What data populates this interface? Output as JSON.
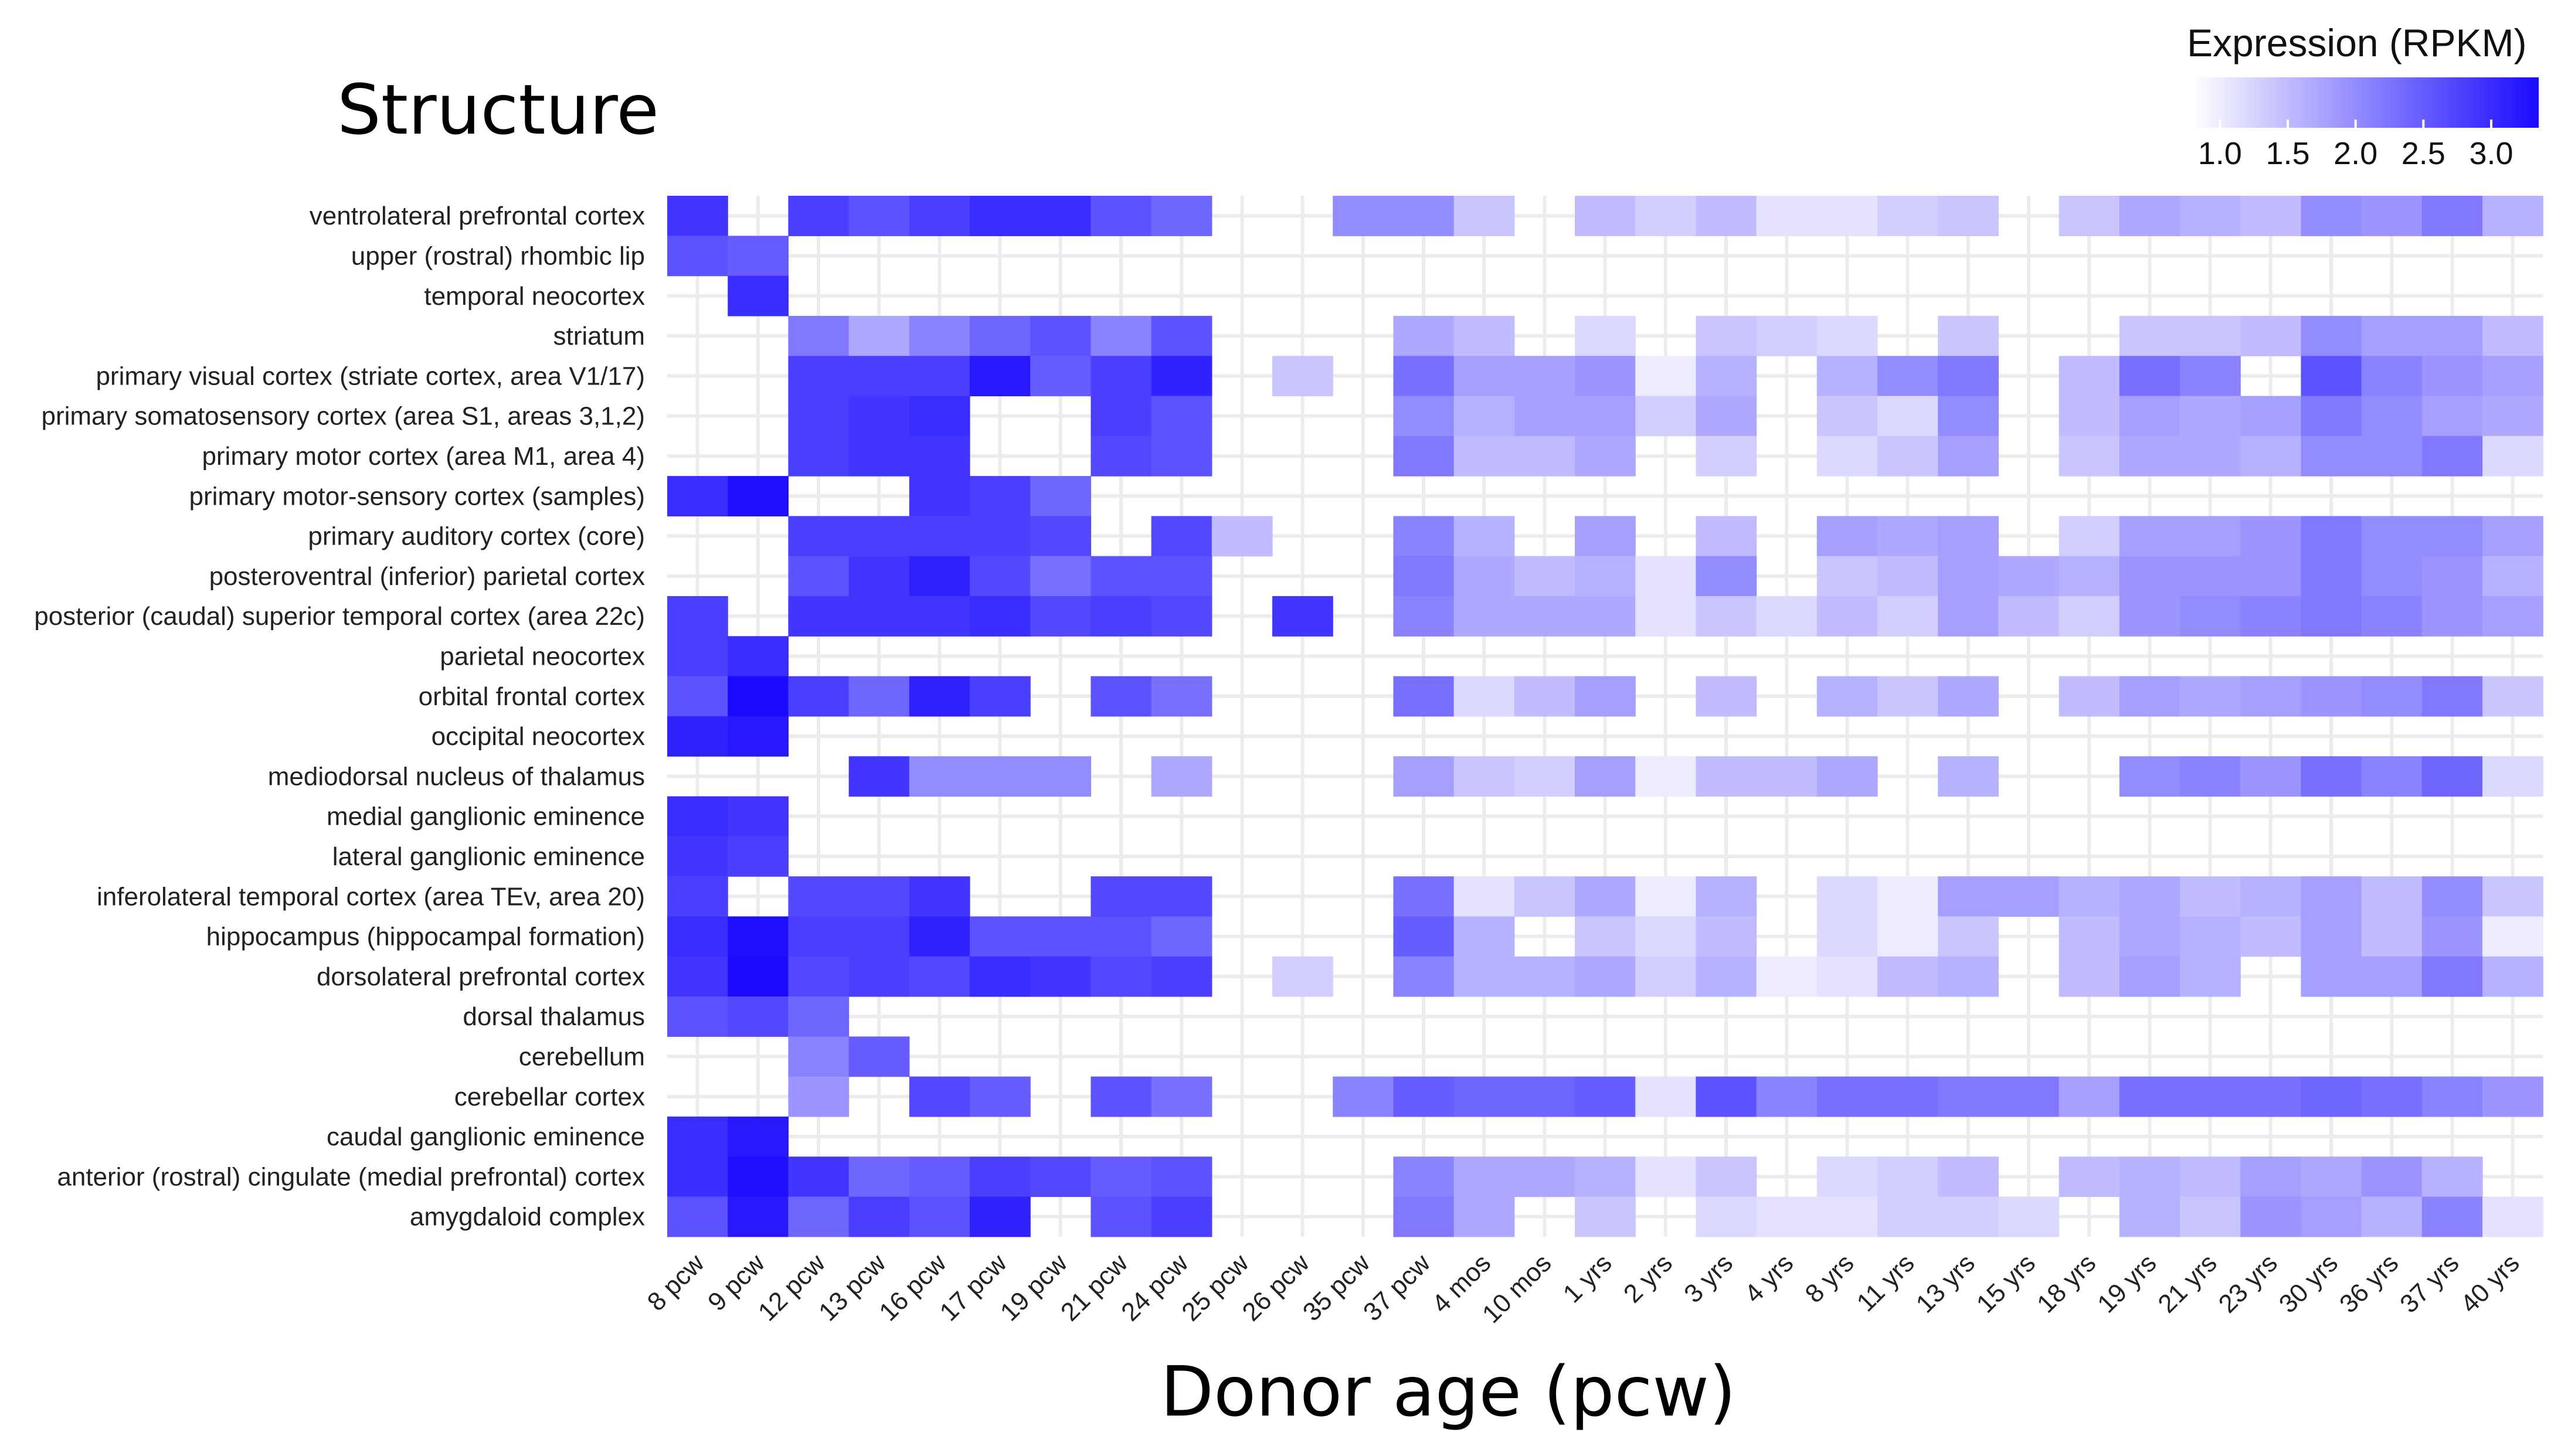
{
  "chart_data": {
    "type": "heatmap",
    "title": "Structure",
    "xlabel": "Donor age (pcw)",
    "x": [
      "8 pcw",
      "9 pcw",
      "12 pcw",
      "13 pcw",
      "16 pcw",
      "17 pcw",
      "19 pcw",
      "21 pcw",
      "24 pcw",
      "25 pcw",
      "26 pcw",
      "35 pcw",
      "37 pcw",
      "4 mos",
      "10 mos",
      "1 yrs",
      "2 yrs",
      "3 yrs",
      "4 yrs",
      "8 yrs",
      "11 yrs",
      "13 yrs",
      "15 yrs",
      "18 yrs",
      "19 yrs",
      "21 yrs",
      "23 yrs",
      "30 yrs",
      "36 yrs",
      "37 yrs",
      "40 yrs"
    ],
    "y": [
      "ventrolateral prefrontal cortex",
      "upper (rostral) rhombic lip",
      "temporal neocortex",
      "striatum",
      "primary visual cortex (striate cortex, area V1/17)",
      "primary somatosensory cortex (area S1, areas 3,1,2)",
      "primary motor cortex (area M1, area 4)",
      "primary motor-sensory cortex (samples)",
      "primary auditory cortex (core)",
      "posteroventral (inferior) parietal cortex",
      "posterior (caudal) superior temporal cortex (area 22c)",
      "parietal neocortex",
      "orbital frontal cortex",
      "occipital neocortex",
      "mediodorsal nucleus of thalamus",
      "medial ganglionic eminence",
      "lateral ganglionic eminence",
      "inferolateral temporal cortex (area TEv, area 20)",
      "hippocampus (hippocampal formation)",
      "dorsolateral prefrontal cortex",
      "dorsal thalamus",
      "cerebellum",
      "cerebellar cortex",
      "caudal ganglionic eminence",
      "anterior (rostral) cingulate (medial prefrontal) cortex",
      "amygdaloid complex"
    ],
    "values": [
      [
        2.9,
        null,
        2.8,
        2.6,
        2.8,
        3.0,
        3.0,
        2.6,
        2.4,
        null,
        null,
        2.0,
        2.0,
        1.4,
        null,
        1.5,
        1.3,
        1.5,
        1.1,
        1.1,
        1.3,
        1.4,
        null,
        1.4,
        1.7,
        1.6,
        1.5,
        2.0,
        1.9,
        2.2,
        1.6
      ],
      [
        2.6,
        2.5,
        null,
        null,
        null,
        null,
        null,
        null,
        null,
        null,
        null,
        null,
        null,
        null,
        null,
        null,
        null,
        null,
        null,
        null,
        null,
        null,
        null,
        null,
        null,
        null,
        null,
        null,
        null,
        null,
        null
      ],
      [
        null,
        3.0,
        null,
        null,
        null,
        null,
        null,
        null,
        null,
        null,
        null,
        null,
        null,
        null,
        null,
        null,
        null,
        null,
        null,
        null,
        null,
        null,
        null,
        null,
        null,
        null,
        null,
        null,
        null,
        null,
        null
      ],
      [
        null,
        null,
        2.2,
        1.7,
        2.1,
        2.4,
        2.6,
        2.1,
        2.6,
        null,
        null,
        null,
        1.7,
        1.5,
        null,
        1.2,
        null,
        1.4,
        1.3,
        1.2,
        null,
        1.4,
        null,
        null,
        1.4,
        1.4,
        1.5,
        2.0,
        1.8,
        1.8,
        1.5
      ],
      [
        null,
        null,
        2.8,
        2.8,
        2.8,
        3.2,
        2.5,
        2.8,
        3.1,
        null,
        1.4,
        null,
        2.3,
        1.8,
        1.8,
        1.9,
        1.0,
        1.6,
        null,
        1.6,
        2.0,
        2.2,
        null,
        1.5,
        2.3,
        2.1,
        null,
        2.6,
        2.1,
        1.9,
        1.8
      ],
      [
        null,
        null,
        2.8,
        2.9,
        3.0,
        null,
        null,
        2.8,
        2.6,
        null,
        null,
        null,
        2.0,
        1.6,
        1.8,
        1.8,
        1.3,
        1.7,
        null,
        1.4,
        1.2,
        2.0,
        null,
        1.5,
        1.8,
        1.7,
        1.8,
        2.2,
        2.0,
        1.8,
        1.7
      ],
      [
        null,
        null,
        2.8,
        2.9,
        2.9,
        null,
        null,
        2.7,
        2.6,
        null,
        null,
        null,
        2.2,
        1.5,
        1.5,
        1.7,
        null,
        1.3,
        null,
        1.2,
        1.4,
        1.8,
        null,
        1.4,
        1.7,
        1.7,
        1.6,
        2.0,
        2.0,
        2.2,
        1.2
      ],
      [
        3.0,
        3.3,
        null,
        null,
        2.9,
        2.8,
        2.4,
        null,
        null,
        null,
        null,
        null,
        null,
        null,
        null,
        null,
        null,
        null,
        null,
        null,
        null,
        null,
        null,
        null,
        null,
        null,
        null,
        null,
        null,
        null,
        null
      ],
      [
        null,
        null,
        2.8,
        2.8,
        2.8,
        2.8,
        2.7,
        null,
        2.7,
        1.5,
        null,
        null,
        2.1,
        1.6,
        null,
        1.8,
        null,
        1.5,
        null,
        1.8,
        1.7,
        1.8,
        null,
        1.3,
        1.8,
        1.8,
        1.9,
        2.2,
        2.0,
        2.0,
        1.8
      ],
      [
        null,
        null,
        2.6,
        2.9,
        3.1,
        2.7,
        2.3,
        2.6,
        2.6,
        null,
        null,
        null,
        2.2,
        1.7,
        1.5,
        1.6,
        1.1,
        2.0,
        null,
        1.4,
        1.5,
        1.8,
        1.7,
        1.6,
        1.9,
        1.9,
        1.9,
        2.2,
        2.0,
        1.9,
        1.6
      ],
      [
        2.8,
        null,
        2.9,
        2.9,
        2.9,
        3.0,
        2.7,
        2.8,
        2.7,
        null,
        2.9,
        null,
        2.1,
        1.7,
        1.7,
        1.7,
        1.1,
        1.4,
        1.2,
        1.5,
        1.3,
        1.8,
        1.5,
        1.3,
        1.9,
        2.0,
        2.1,
        2.2,
        2.1,
        1.9,
        1.8
      ],
      [
        2.8,
        3.0,
        null,
        null,
        null,
        null,
        null,
        null,
        null,
        null,
        null,
        null,
        null,
        null,
        null,
        null,
        null,
        null,
        null,
        null,
        null,
        null,
        null,
        null,
        null,
        null,
        null,
        null,
        null,
        null,
        null
      ],
      [
        2.6,
        3.4,
        2.8,
        2.4,
        3.1,
        2.8,
        null,
        2.6,
        2.3,
        null,
        null,
        null,
        2.3,
        1.2,
        1.5,
        1.8,
        null,
        1.5,
        null,
        1.6,
        1.4,
        1.7,
        null,
        1.5,
        1.8,
        1.7,
        1.8,
        1.9,
        2.0,
        2.2,
        1.4
      ],
      [
        3.1,
        3.2,
        null,
        null,
        null,
        null,
        null,
        null,
        null,
        null,
        null,
        null,
        null,
        null,
        null,
        null,
        null,
        null,
        null,
        null,
        null,
        null,
        null,
        null,
        null,
        null,
        null,
        null,
        null,
        null,
        null
      ],
      [
        null,
        null,
        null,
        2.9,
        2.0,
        2.0,
        2.0,
        null,
        1.7,
        null,
        null,
        null,
        1.8,
        1.4,
        1.3,
        1.8,
        1.0,
        1.5,
        1.5,
        1.7,
        null,
        1.6,
        null,
        null,
        2.0,
        2.1,
        1.9,
        2.3,
        2.1,
        2.4,
        1.2
      ],
      [
        3.0,
        2.9,
        null,
        null,
        null,
        null,
        null,
        null,
        null,
        null,
        null,
        null,
        null,
        null,
        null,
        null,
        null,
        null,
        null,
        null,
        null,
        null,
        null,
        null,
        null,
        null,
        null,
        null,
        null,
        null,
        null
      ],
      [
        2.9,
        2.8,
        null,
        null,
        null,
        null,
        null,
        null,
        null,
        null,
        null,
        null,
        null,
        null,
        null,
        null,
        null,
        null,
        null,
        null,
        null,
        null,
        null,
        null,
        null,
        null,
        null,
        null,
        null,
        null,
        null
      ],
      [
        2.8,
        null,
        2.7,
        2.7,
        2.9,
        null,
        null,
        2.7,
        2.7,
        null,
        null,
        null,
        2.3,
        1.1,
        1.4,
        1.7,
        1.0,
        1.6,
        null,
        1.2,
        1.0,
        1.8,
        1.8,
        1.6,
        1.7,
        1.5,
        1.6,
        1.8,
        1.5,
        2.0,
        1.4
      ],
      [
        3.0,
        3.3,
        2.8,
        2.8,
        3.1,
        2.6,
        2.6,
        2.6,
        2.4,
        null,
        null,
        null,
        2.5,
        1.6,
        null,
        1.4,
        1.2,
        1.5,
        null,
        1.2,
        1.0,
        1.4,
        null,
        1.5,
        1.7,
        1.6,
        1.5,
        1.8,
        1.5,
        1.9,
        1.0
      ],
      [
        2.9,
        3.5,
        2.7,
        2.8,
        2.7,
        3.0,
        2.9,
        2.7,
        2.8,
        null,
        1.3,
        null,
        2.1,
        1.6,
        1.6,
        1.7,
        1.3,
        1.6,
        1.0,
        1.1,
        1.5,
        1.6,
        null,
        1.5,
        1.8,
        1.6,
        null,
        1.8,
        1.8,
        2.2,
        1.6
      ],
      [
        2.6,
        2.7,
        2.4,
        null,
        null,
        null,
        null,
        null,
        null,
        null,
        null,
        null,
        null,
        null,
        null,
        null,
        null,
        null,
        null,
        null,
        null,
        null,
        null,
        null,
        null,
        null,
        null,
        null,
        null,
        null,
        null
      ],
      [
        null,
        null,
        2.1,
        2.5,
        null,
        null,
        null,
        null,
        null,
        null,
        null,
        null,
        null,
        null,
        null,
        null,
        null,
        null,
        null,
        null,
        null,
        null,
        null,
        null,
        null,
        null,
        null,
        null,
        null,
        null,
        null
      ],
      [
        null,
        null,
        1.9,
        null,
        2.7,
        2.5,
        null,
        2.6,
        2.3,
        null,
        null,
        2.1,
        2.5,
        2.4,
        2.4,
        2.5,
        1.1,
        2.6,
        2.1,
        2.3,
        2.3,
        2.2,
        2.2,
        1.8,
        2.3,
        2.3,
        2.3,
        2.4,
        2.3,
        2.1,
        1.9
      ],
      [
        3.0,
        3.2,
        null,
        null,
        null,
        null,
        null,
        null,
        null,
        null,
        null,
        null,
        null,
        null,
        null,
        null,
        null,
        null,
        null,
        null,
        null,
        null,
        null,
        null,
        null,
        null,
        null,
        null,
        null,
        null,
        null
      ],
      [
        3.0,
        3.3,
        2.9,
        2.4,
        2.5,
        2.8,
        2.7,
        2.5,
        2.6,
        null,
        null,
        null,
        2.1,
        1.7,
        1.7,
        1.6,
        1.1,
        1.4,
        null,
        1.2,
        1.3,
        1.5,
        null,
        1.5,
        1.6,
        1.5,
        1.8,
        1.7,
        1.9,
        1.6,
        null
      ],
      [
        2.6,
        3.2,
        2.4,
        2.8,
        2.6,
        3.1,
        null,
        2.6,
        2.8,
        null,
        null,
        null,
        2.2,
        1.7,
        null,
        1.4,
        null,
        1.2,
        1.1,
        1.1,
        1.3,
        1.3,
        1.2,
        null,
        1.6,
        1.4,
        1.9,
        1.8,
        1.6,
        2.1,
        1.1
      ]
    ],
    "legend": {
      "title": "Expression (RPKM)",
      "ticks": [
        "1.0",
        "1.5",
        "2.0",
        "2.5",
        "3.0"
      ],
      "range": [
        0.8,
        3.35
      ],
      "low_color": "#ffffff",
      "high_color": "#1a0aff",
      "placement": "top-right"
    },
    "grid": true,
    "grid_color": "#ececec"
  }
}
